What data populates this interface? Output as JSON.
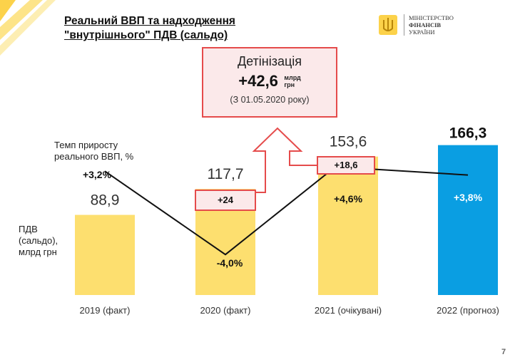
{
  "title_line1": "Реальний ВВП та надходження",
  "title_line2": "\"внутрішнього\" ПДВ (сальдо)",
  "logo": {
    "line1": "МІНІСТЕРСТВО",
    "line2": "ФІНАНСІВ",
    "line3": "УКРАЇНИ"
  },
  "detinization": {
    "title": "Детінізація",
    "value": "+42,6",
    "unit_line1": "млрд",
    "unit_line2": "грн",
    "note": "(З 01.05.2020 року)"
  },
  "gdp_legend": {
    "line1": "Темп приросту",
    "line2": "реального ВВП, %"
  },
  "vat_legend": {
    "line1": "ПДВ",
    "line2": "(сальдо),",
    "line3": "млрд грн"
  },
  "increments": [
    "+24",
    "+18,6"
  ],
  "page_number": "7",
  "colors": {
    "bar": "#fddf6f",
    "bar_forecast": "#0a9ee2",
    "accent_red": "#e54b4b",
    "box_fill": "#fbe9ea"
  },
  "chart_data": {
    "type": "bar",
    "categories": [
      "2019 (факт)",
      "2020 (факт)",
      "2021 (очікувані)",
      "2022 (прогноз)"
    ],
    "series": [
      {
        "name": "ПДВ (сальдо), млрд грн",
        "values": [
          88.9,
          117.7,
          153.6,
          166.3
        ],
        "labels": [
          "88,9",
          "117,7",
          "153,6",
          "166,3"
        ]
      },
      {
        "name": "Темп приросту реального ВВП, %",
        "type": "line",
        "values": [
          3.2,
          -4.0,
          4.6,
          3.8
        ],
        "labels": [
          "+3,2%",
          "-4,0%",
          "+4,6%",
          "+3,8%"
        ]
      }
    ],
    "ylim": [
      0,
      170
    ],
    "xlabel": "",
    "ylabel": ""
  }
}
